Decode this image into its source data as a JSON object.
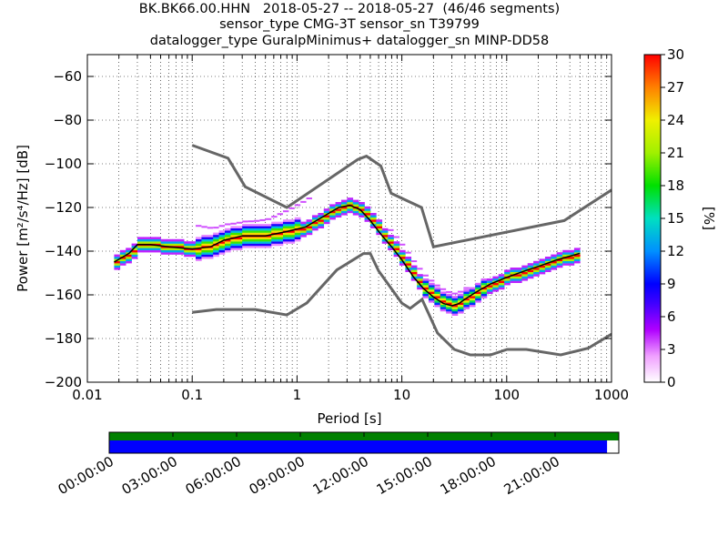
{
  "chart_data": {
    "type": "heatmap",
    "title_lines": [
      "BK.BK66.00.HHN   2018-05-27 -- 2018-05-27  (46/46 segments)",
      "sensor_type CMG-3T sensor_sn T39799",
      "datalogger_type GuralpMinimus+ datalogger_sn MINP-DD58"
    ],
    "xlabel": "Period [s]",
    "ylabel": "Power [m²/s⁴/Hz] [dB]",
    "xscale": "log",
    "xlim": [
      0.01,
      1000
    ],
    "ylim": [
      -200,
      -50
    ],
    "xticks": [
      0.01,
      0.1,
      1,
      10,
      100,
      1000
    ],
    "xtick_labels": [
      "0.01",
      "0.1",
      "1",
      "10",
      "100",
      "1000"
    ],
    "yticks": [
      -200,
      -180,
      -160,
      -140,
      -120,
      -100,
      -80,
      -60
    ],
    "ytick_labels": [
      "−200",
      "−180",
      "−160",
      "−140",
      "−120",
      "−100",
      "−80",
      "−60"
    ],
    "grid": true,
    "colorbar": {
      "label": "[%]",
      "range": [
        0,
        30
      ],
      "ticks": [
        "0",
        "3",
        "6",
        "9",
        "12",
        "15",
        "18",
        "21",
        "24",
        "27",
        "30"
      ]
    },
    "series": [
      {
        "name": "",
        "style": "black-line",
        "x": [
          0.018,
          0.025,
          0.03,
          0.04,
          0.06,
          0.1,
          0.15,
          0.2,
          0.3,
          0.5,
          0.8,
          1.2,
          1.8,
          2.5,
          3.2,
          4,
          5,
          6.5,
          8,
          10,
          13,
          16,
          20,
          25,
          30,
          35,
          40,
          50,
          70,
          100,
          150,
          200,
          300,
          500
        ],
        "y": [
          -145,
          -141,
          -137,
          -137,
          -138,
          -139,
          -138,
          -135,
          -133,
          -133,
          -131,
          -129,
          -124,
          -120,
          -119,
          -121,
          -126,
          -133,
          -138,
          -144,
          -152,
          -157,
          -161,
          -164,
          -165,
          -164,
          -162,
          -159,
          -155,
          -152,
          -149,
          -147,
          -144,
          -141
        ]
      },
      {
        "name": "",
        "style": "noise-model-high",
        "x": [
          0.1,
          0.22,
          0.32,
          0.8,
          3.8,
          4.6,
          6.3,
          7.9,
          15.4,
          20,
          354,
          1000
        ],
        "y": [
          -91.5,
          -97.4,
          -110.5,
          -120,
          -98,
          -96.5,
          -101,
          -113.5,
          -120,
          -138,
          -126,
          -112
        ]
      },
      {
        "name": "",
        "style": "noise-model-low",
        "x": [
          0.1,
          0.17,
          0.4,
          0.8,
          1.24,
          2.4,
          4.3,
          5,
          6,
          10,
          12,
          15.6,
          21.9,
          31.6,
          45,
          70,
          101,
          154,
          328,
          600,
          1000
        ],
        "y": [
          -168,
          -166.7,
          -166.7,
          -169.2,
          -163.7,
          -148.6,
          -141.1,
          -141.1,
          -149,
          -163.8,
          -166.2,
          -162.1,
          -177.5,
          -185,
          -187.5,
          -187.5,
          -185,
          -185,
          -187.5,
          -184.4,
          -178
        ]
      }
    ]
  },
  "timeline": {
    "tick_labels": [
      "00:00:00",
      "03:00:00",
      "06:00:00",
      "09:00:00",
      "12:00:00",
      "15:00:00",
      "18:00:00",
      "21:00:00"
    ],
    "data_coverage_color": "#008000",
    "psd_coverage_color": "#0000ff",
    "psd_coverage_fraction": 0.977
  }
}
